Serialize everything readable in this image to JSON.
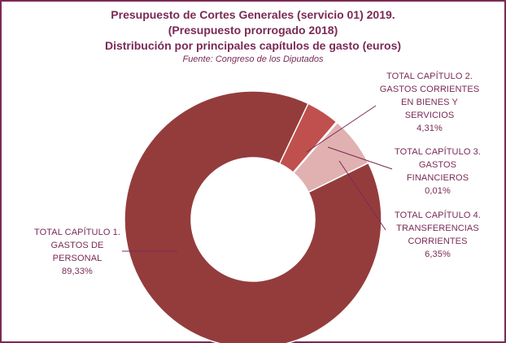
{
  "chart_data": {
    "type": "pie",
    "style": "donut",
    "title_lines": [
      "Presupuesto de Cortes Generales (servicio 01) 2019.",
      "(Presupuesto prorrogado 2018)",
      "Distribución por principales capítulos de gasto (euros)"
    ],
    "source": "Fuente:  Congreso de los Diputados",
    "slices": [
      {
        "label_lines": [
          "TOTAL CAPÍTULO 1.",
          "GASTOS DE",
          "PERSONAL"
        ],
        "value": 89.33,
        "value_label": "89,33%",
        "color": "#943c3c"
      },
      {
        "label_lines": [
          "TOTAL CAPÍTULO 2.",
          "GASTOS CORRIENTES",
          "EN BIENES Y",
          "SERVICIOS"
        ],
        "value": 4.31,
        "value_label": "4,31%",
        "color": "#c0504d"
      },
      {
        "label_lines": [
          "TOTAL CAPÍTULO 3.",
          "GASTOS",
          "FINANCIEROS"
        ],
        "value": 0.01,
        "value_label": "0,01%",
        "color": "#e0b1b0"
      },
      {
        "label_lines": [
          "TOTAL CAPÍTULO 4.",
          "TRANSFERENCIAS",
          "CORRIENTES"
        ],
        "value": 6.35,
        "value_label": "6,35%",
        "color": "#e0b1b0"
      }
    ],
    "border_color": "#7a2a55",
    "text_color": "#7a2a55"
  }
}
